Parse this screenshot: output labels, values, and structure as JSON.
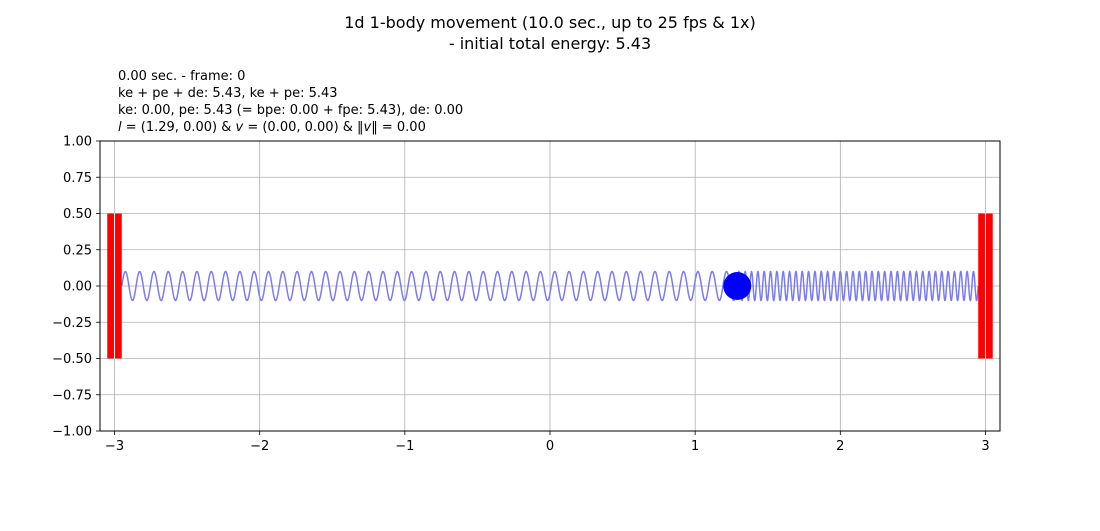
{
  "chart_data": {
    "type": "line",
    "title": "1d 1-body movement (10.0 sec., up to 25 fps & 1x)",
    "subtitle": "- initial total energy: 5.43",
    "info_lines": [
      "0.00 sec. - frame: 0",
      "ke + pe + de: 5.43, ke + pe: 5.43",
      "ke: 0.00, pe: 5.43 (= bpe: 0.00 + fpe: 5.43), de: 0.00"
    ],
    "info_line4": {
      "l_symbol": "l",
      "l_text": " = (1.29, 0.00) & ",
      "v_symbol": "v",
      "v_text": " = (0.00, 0.00) & ‖",
      "norm_symbol": "v",
      "norm_text": "‖ = 0.00"
    },
    "xlim": [
      -3.1,
      3.1
    ],
    "ylim": [
      -1.0,
      1.0
    ],
    "x_ticks": [
      -3,
      -2,
      -1,
      0,
      1,
      2,
      3
    ],
    "x_tick_labels": [
      "−3",
      "−2",
      "−1",
      "0",
      "1",
      "2",
      "3"
    ],
    "y_ticks": [
      1.0,
      0.75,
      0.5,
      0.25,
      0.0,
      -0.25,
      -0.5,
      -0.75,
      -1.0
    ],
    "y_tick_labels": [
      "1.00",
      "0.75",
      "0.50",
      "0.25",
      "0.00",
      "−0.25",
      "−0.50",
      "−0.75",
      "−1.00"
    ],
    "grid": true,
    "walls": [
      {
        "x": [
          -3.05,
          -2.95
        ],
        "y": [
          -0.5,
          0.5
        ],
        "color": "#ff0000"
      },
      {
        "x": [
          2.95,
          3.05
        ],
        "y": [
          -0.5,
          0.5
        ],
        "color": "#ff0000"
      }
    ],
    "body": {
      "position": [
        1.29,
        0.0
      ],
      "velocity": [
        0.0,
        0.0
      ],
      "color": "#0000ff"
    },
    "springs": [
      {
        "from": -2.95,
        "to": 1.29,
        "amplitude": 0.1,
        "coils": 43,
        "color": "#7b7bf5"
      },
      {
        "from": 1.29,
        "to": 2.95,
        "amplitude": 0.1,
        "coils": 38,
        "color": "#7b7bf5"
      }
    ],
    "colors": {
      "axes": "#000000",
      "grid": "#b0b0b0",
      "wall": "#ff0000",
      "body": "#0000ff",
      "spring": "#7b7bf5"
    }
  }
}
